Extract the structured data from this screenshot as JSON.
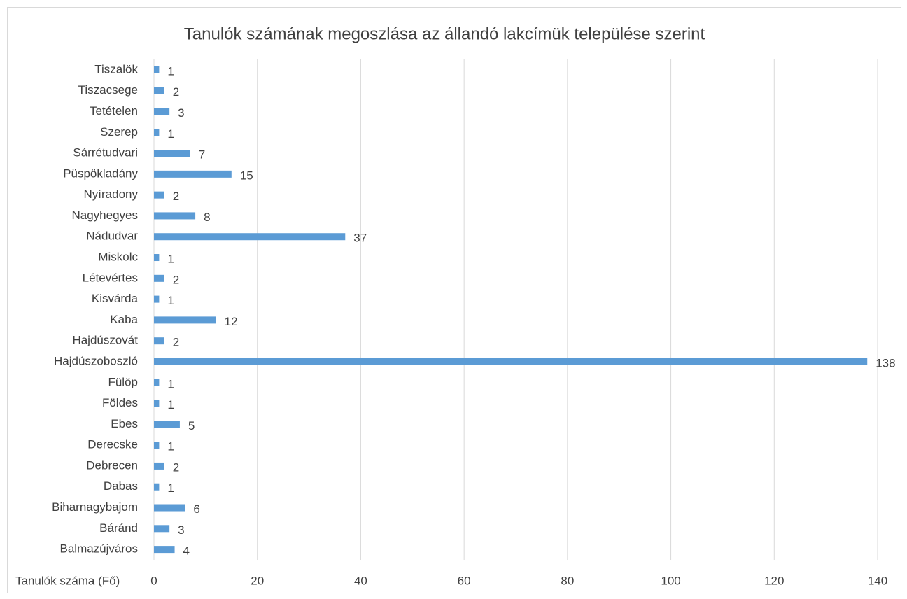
{
  "chart_data": {
    "type": "bar",
    "orientation": "horizontal",
    "title": "Tanulók számának megoszlása az állandó lakcímük települése szerint",
    "x_label": "Tanulók száma (Fő)",
    "categories": [
      "Tiszalök",
      "Tiszacsege",
      "Tetételen",
      "Szerep",
      "Sárrétudvari",
      "Püspökladány",
      "Nyíradony",
      "Nagyhegyes",
      "Nádudvar",
      "Miskolc",
      "Létevértes",
      "Kisvárda",
      "Kaba",
      "Hajdúszovát",
      "Hajdúszoboszló",
      "Fülöp",
      "Földes",
      "Ebes",
      "Derecske",
      "Debrecen",
      "Dabas",
      "Biharnagybajom",
      "Báránd",
      "Balmazújváros"
    ],
    "values": [
      1,
      2,
      3,
      1,
      7,
      15,
      2,
      8,
      37,
      1,
      2,
      1,
      12,
      2,
      138,
      1,
      1,
      5,
      1,
      2,
      1,
      6,
      3,
      4
    ],
    "color": "#5b9bd5",
    "xlim": [
      0,
      140
    ],
    "xticks": [
      0,
      20,
      40,
      60,
      80,
      100,
      120,
      140
    ],
    "grid": true
  }
}
